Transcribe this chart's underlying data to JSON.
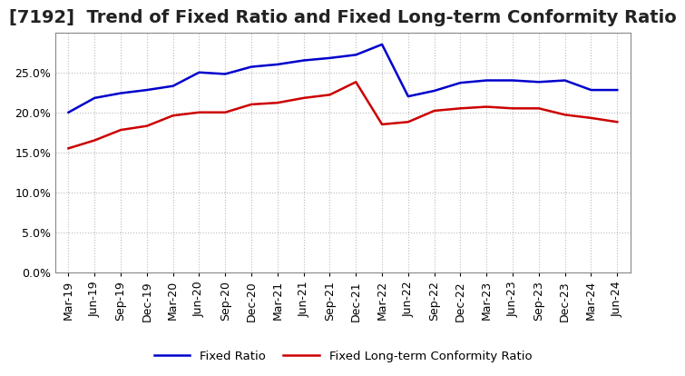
{
  "title": "[7192]  Trend of Fixed Ratio and Fixed Long-term Conformity Ratio",
  "fixed_ratio": {
    "dates": [
      "Mar-19",
      "Jun-19",
      "Sep-19",
      "Dec-19",
      "Mar-20",
      "Jun-20",
      "Sep-20",
      "Dec-20",
      "Mar-21",
      "Jun-21",
      "Sep-21",
      "Dec-21",
      "Mar-22",
      "Jun-22",
      "Sep-22",
      "Dec-22",
      "Mar-23",
      "Jun-23",
      "Sep-23",
      "Dec-23",
      "Mar-24",
      "Jun-24"
    ],
    "values": [
      0.2,
      0.218,
      0.224,
      0.228,
      0.233,
      0.25,
      0.248,
      0.257,
      0.26,
      0.265,
      0.268,
      0.272,
      0.285,
      0.22,
      0.227,
      0.237,
      0.24,
      0.24,
      0.238,
      0.24,
      0.228,
      0.228
    ],
    "color": "#0000cc",
    "label": "Fixed Ratio"
  },
  "fixed_lt_ratio": {
    "dates": [
      "Mar-19",
      "Jun-19",
      "Sep-19",
      "Dec-19",
      "Mar-20",
      "Jun-20",
      "Sep-20",
      "Dec-20",
      "Mar-21",
      "Jun-21",
      "Sep-21",
      "Dec-21",
      "Mar-22",
      "Jun-22",
      "Sep-22",
      "Dec-22",
      "Mar-23",
      "Jun-23",
      "Sep-23",
      "Dec-23",
      "Mar-24",
      "Jun-24"
    ],
    "values": [
      0.155,
      0.165,
      0.178,
      0.183,
      0.196,
      0.2,
      0.2,
      0.21,
      0.212,
      0.218,
      0.222,
      0.238,
      0.185,
      0.188,
      0.202,
      0.205,
      0.207,
      0.205,
      0.205,
      0.197,
      0.193,
      0.188
    ],
    "color": "#cc0000",
    "label": "Fixed Long-term Conformity Ratio"
  },
  "ylim": [
    0.0,
    0.3
  ],
  "yticks": [
    0.0,
    0.05,
    0.1,
    0.15,
    0.2,
    0.25
  ],
  "background_color": "#ffffff",
  "plot_bg_color": "#ffffff",
  "grid_color": "#bbbbbb",
  "title_fontsize": 14,
  "tick_fontsize": 9
}
